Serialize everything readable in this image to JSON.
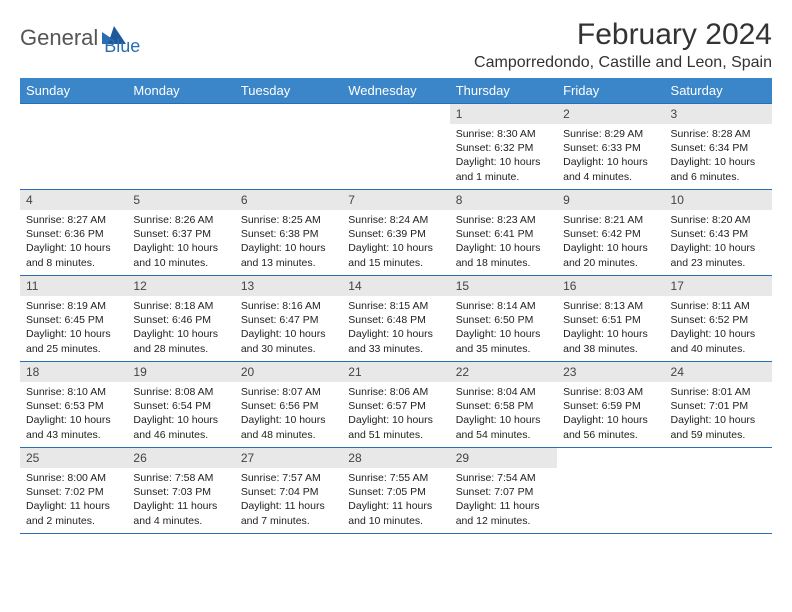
{
  "logo": {
    "text1": "General",
    "text2": "Blue"
  },
  "title": "February 2024",
  "location": "Camporredondo, Castille and Leon, Spain",
  "colors": {
    "header_bg": "#3b86c8",
    "header_fg": "#ffffff",
    "border": "#2a6db3",
    "daynum_bg": "#e8e8e8",
    "text": "#222222",
    "logo_gray": "#555555",
    "logo_blue": "#2a6db3"
  },
  "weekdays": [
    "Sunday",
    "Monday",
    "Tuesday",
    "Wednesday",
    "Thursday",
    "Friday",
    "Saturday"
  ],
  "grid": [
    [
      null,
      null,
      null,
      null,
      {
        "n": "1",
        "sunrise": "8:30 AM",
        "sunset": "6:32 PM",
        "daylight": "10 hours and 1 minute."
      },
      {
        "n": "2",
        "sunrise": "8:29 AM",
        "sunset": "6:33 PM",
        "daylight": "10 hours and 4 minutes."
      },
      {
        "n": "3",
        "sunrise": "8:28 AM",
        "sunset": "6:34 PM",
        "daylight": "10 hours and 6 minutes."
      }
    ],
    [
      {
        "n": "4",
        "sunrise": "8:27 AM",
        "sunset": "6:36 PM",
        "daylight": "10 hours and 8 minutes."
      },
      {
        "n": "5",
        "sunrise": "8:26 AM",
        "sunset": "6:37 PM",
        "daylight": "10 hours and 10 minutes."
      },
      {
        "n": "6",
        "sunrise": "8:25 AM",
        "sunset": "6:38 PM",
        "daylight": "10 hours and 13 minutes."
      },
      {
        "n": "7",
        "sunrise": "8:24 AM",
        "sunset": "6:39 PM",
        "daylight": "10 hours and 15 minutes."
      },
      {
        "n": "8",
        "sunrise": "8:23 AM",
        "sunset": "6:41 PM",
        "daylight": "10 hours and 18 minutes."
      },
      {
        "n": "9",
        "sunrise": "8:21 AM",
        "sunset": "6:42 PM",
        "daylight": "10 hours and 20 minutes."
      },
      {
        "n": "10",
        "sunrise": "8:20 AM",
        "sunset": "6:43 PM",
        "daylight": "10 hours and 23 minutes."
      }
    ],
    [
      {
        "n": "11",
        "sunrise": "8:19 AM",
        "sunset": "6:45 PM",
        "daylight": "10 hours and 25 minutes."
      },
      {
        "n": "12",
        "sunrise": "8:18 AM",
        "sunset": "6:46 PM",
        "daylight": "10 hours and 28 minutes."
      },
      {
        "n": "13",
        "sunrise": "8:16 AM",
        "sunset": "6:47 PM",
        "daylight": "10 hours and 30 minutes."
      },
      {
        "n": "14",
        "sunrise": "8:15 AM",
        "sunset": "6:48 PM",
        "daylight": "10 hours and 33 minutes."
      },
      {
        "n": "15",
        "sunrise": "8:14 AM",
        "sunset": "6:50 PM",
        "daylight": "10 hours and 35 minutes."
      },
      {
        "n": "16",
        "sunrise": "8:13 AM",
        "sunset": "6:51 PM",
        "daylight": "10 hours and 38 minutes."
      },
      {
        "n": "17",
        "sunrise": "8:11 AM",
        "sunset": "6:52 PM",
        "daylight": "10 hours and 40 minutes."
      }
    ],
    [
      {
        "n": "18",
        "sunrise": "8:10 AM",
        "sunset": "6:53 PM",
        "daylight": "10 hours and 43 minutes."
      },
      {
        "n": "19",
        "sunrise": "8:08 AM",
        "sunset": "6:54 PM",
        "daylight": "10 hours and 46 minutes."
      },
      {
        "n": "20",
        "sunrise": "8:07 AM",
        "sunset": "6:56 PM",
        "daylight": "10 hours and 48 minutes."
      },
      {
        "n": "21",
        "sunrise": "8:06 AM",
        "sunset": "6:57 PM",
        "daylight": "10 hours and 51 minutes."
      },
      {
        "n": "22",
        "sunrise": "8:04 AM",
        "sunset": "6:58 PM",
        "daylight": "10 hours and 54 minutes."
      },
      {
        "n": "23",
        "sunrise": "8:03 AM",
        "sunset": "6:59 PM",
        "daylight": "10 hours and 56 minutes."
      },
      {
        "n": "24",
        "sunrise": "8:01 AM",
        "sunset": "7:01 PM",
        "daylight": "10 hours and 59 minutes."
      }
    ],
    [
      {
        "n": "25",
        "sunrise": "8:00 AM",
        "sunset": "7:02 PM",
        "daylight": "11 hours and 2 minutes."
      },
      {
        "n": "26",
        "sunrise": "7:58 AM",
        "sunset": "7:03 PM",
        "daylight": "11 hours and 4 minutes."
      },
      {
        "n": "27",
        "sunrise": "7:57 AM",
        "sunset": "7:04 PM",
        "daylight": "11 hours and 7 minutes."
      },
      {
        "n": "28",
        "sunrise": "7:55 AM",
        "sunset": "7:05 PM",
        "daylight": "11 hours and 10 minutes."
      },
      {
        "n": "29",
        "sunrise": "7:54 AM",
        "sunset": "7:07 PM",
        "daylight": "11 hours and 12 minutes."
      },
      null,
      null
    ]
  ],
  "labels": {
    "sunrise": "Sunrise:",
    "sunset": "Sunset:",
    "daylight": "Daylight:"
  }
}
